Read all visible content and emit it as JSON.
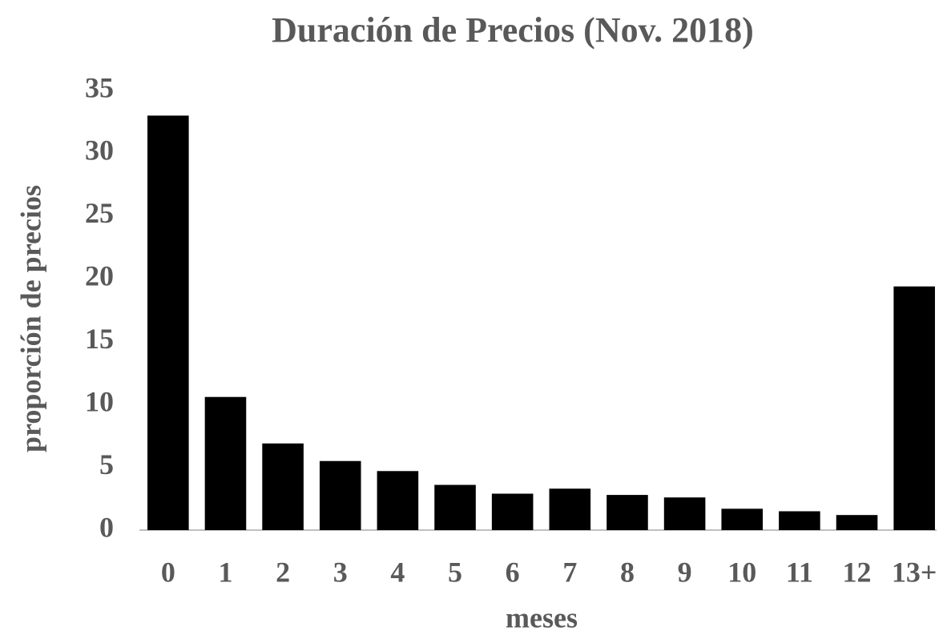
{
  "chart_data": {
    "type": "bar",
    "title": "Duración de Precios (Nov. 2018)",
    "x_label": "meses",
    "y_label": "proporción de precios",
    "categories": [
      "0",
      "1",
      "2",
      "3",
      "4",
      "5",
      "6",
      "7",
      "8",
      "9",
      "10",
      "11",
      "12",
      "13+"
    ],
    "values": [
      33,
      10.6,
      6.9,
      5.5,
      4.7,
      3.6,
      2.9,
      3.3,
      2.8,
      2.6,
      1.7,
      1.5,
      1.2,
      19.4
    ],
    "color": "#000000",
    "ylim": [
      0,
      35
    ],
    "yticks": [
      0,
      5,
      10,
      15,
      20,
      25,
      30,
      35
    ],
    "grid": false
  }
}
